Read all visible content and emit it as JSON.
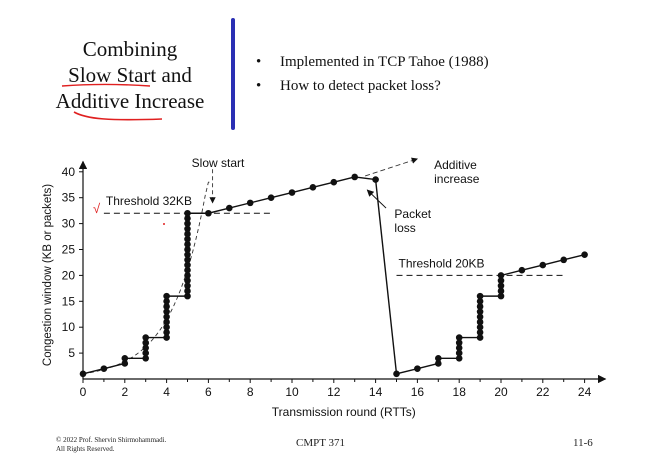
{
  "slide": {
    "title_lines": [
      "Combining",
      "Slow Start and",
      "Additive Increase"
    ],
    "bullets": [
      "Implemented in TCP Tahoe (1988)",
      "How to detect packet loss?"
    ],
    "bullet_symbol": "•",
    "accent_bar_color": "#2a2fb4",
    "annotation_color": "#e02020",
    "annotation_check": "√"
  },
  "footer": {
    "copyright_lines": [
      "© 2022 Prof. Shervin Shirmohammadi.",
      "All Rights Reserved."
    ],
    "course": "CMPT 371",
    "page": "11-6"
  },
  "chart_data": {
    "type": "line",
    "xlabel": "Transmission round (RTTs)",
    "ylabel": "Congestion window (KB or packets)",
    "xlim": [
      0,
      25
    ],
    "ylim": [
      0,
      42
    ],
    "x_ticks": [
      0,
      2,
      4,
      6,
      8,
      10,
      12,
      14,
      16,
      18,
      20,
      22,
      24
    ],
    "y_ticks": [
      5,
      10,
      15,
      20,
      25,
      30,
      35,
      40
    ],
    "series": [
      {
        "values": [
          [
            0,
            1
          ],
          [
            1,
            2
          ],
          [
            2,
            3
          ],
          [
            2,
            4
          ],
          [
            3,
            4
          ],
          [
            3,
            5
          ],
          [
            3,
            6
          ],
          [
            3,
            7
          ],
          [
            3,
            8
          ],
          [
            4,
            8
          ],
          [
            4,
            9
          ],
          [
            4,
            10
          ],
          [
            4,
            11
          ],
          [
            4,
            12
          ],
          [
            4,
            13
          ],
          [
            4,
            14
          ],
          [
            4,
            15
          ],
          [
            4,
            16
          ],
          [
            5,
            16
          ],
          [
            5,
            17
          ],
          [
            5,
            18
          ],
          [
            5,
            19
          ],
          [
            5,
            20
          ],
          [
            5,
            21
          ],
          [
            5,
            22
          ],
          [
            5,
            23
          ],
          [
            5,
            24
          ],
          [
            5,
            25
          ],
          [
            5,
            26
          ],
          [
            5,
            27
          ],
          [
            5,
            28
          ],
          [
            5,
            29
          ],
          [
            5,
            30
          ],
          [
            5,
            31
          ],
          [
            5,
            32
          ],
          [
            6,
            32
          ],
          [
            7,
            33
          ],
          [
            8,
            34
          ],
          [
            9,
            35
          ],
          [
            10,
            36
          ],
          [
            11,
            37
          ],
          [
            12,
            38
          ],
          [
            13,
            39
          ],
          [
            15,
            1
          ],
          [
            16,
            2
          ],
          [
            17,
            3
          ],
          [
            17,
            4
          ],
          [
            18,
            4
          ],
          [
            18,
            5
          ],
          [
            18,
            6
          ],
          [
            18,
            7
          ],
          [
            18,
            8
          ],
          [
            19,
            8
          ],
          [
            19,
            9
          ],
          [
            19,
            10
          ],
          [
            19,
            11
          ],
          [
            19,
            12
          ],
          [
            19,
            13
          ],
          [
            19,
            14
          ],
          [
            19,
            15
          ],
          [
            19,
            16
          ],
          [
            20,
            16
          ],
          [
            20,
            17
          ],
          [
            20,
            18
          ],
          [
            20,
            19
          ],
          [
            20,
            20
          ],
          [
            21,
            21
          ],
          [
            22,
            22
          ],
          [
            23,
            23
          ],
          [
            24,
            24
          ]
        ]
      }
    ],
    "thresholds": [
      {
        "label": "Threshold 32KB",
        "value": 32,
        "x_range": [
          1,
          9
        ]
      },
      {
        "label": "Threshold 20KB",
        "value": 20,
        "x_range": [
          15,
          23
        ]
      }
    ],
    "annotations": [
      {
        "text": "Slow start",
        "from": [
          6.2,
          40.5
        ],
        "to": [
          6.2,
          34
        ]
      },
      {
        "text_lines": [
          "Additive",
          "increase"
        ],
        "from": [
          13.5,
          39.2
        ],
        "to": [
          16,
          42.5
        ]
      },
      {
        "text_lines": [
          "Packet",
          "loss"
        ],
        "from": [
          14.5,
          33
        ],
        "to": [
          13.6,
          36.5
        ]
      }
    ],
    "grid": false
  }
}
